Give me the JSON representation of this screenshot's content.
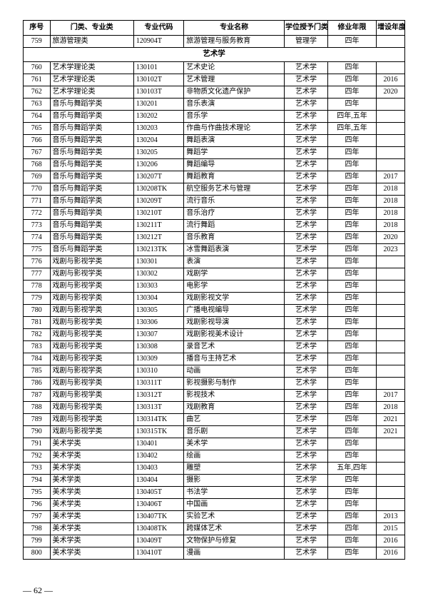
{
  "headers": [
    "序号",
    "门类、专业类",
    "专业代码",
    "专业名称",
    "学位授予门类",
    "修业年限",
    "增设年度"
  ],
  "top_row": [
    "759",
    "旅游管理类",
    "120904T",
    "旅游管理与服务教育",
    "管理学",
    "四年",
    ""
  ],
  "section_title": "艺术学",
  "rows": [
    [
      "760",
      "艺术学理论类",
      "130101",
      "艺术史论",
      "艺术学",
      "四年",
      ""
    ],
    [
      "761",
      "艺术学理论类",
      "130102T",
      "艺术管理",
      "艺术学",
      "四年",
      "2016"
    ],
    [
      "762",
      "艺术学理论类",
      "130103T",
      "非物质文化遗产保护",
      "艺术学",
      "四年",
      "2020"
    ],
    [
      "763",
      "音乐与舞蹈学类",
      "130201",
      "音乐表演",
      "艺术学",
      "四年",
      ""
    ],
    [
      "764",
      "音乐与舞蹈学类",
      "130202",
      "音乐学",
      "艺术学",
      "四年,五年",
      ""
    ],
    [
      "765",
      "音乐与舞蹈学类",
      "130203",
      "作曲与作曲技术理论",
      "艺术学",
      "四年,五年",
      ""
    ],
    [
      "766",
      "音乐与舞蹈学类",
      "130204",
      "舞蹈表演",
      "艺术学",
      "四年",
      ""
    ],
    [
      "767",
      "音乐与舞蹈学类",
      "130205",
      "舞蹈学",
      "艺术学",
      "四年",
      ""
    ],
    [
      "768",
      "音乐与舞蹈学类",
      "130206",
      "舞蹈编导",
      "艺术学",
      "四年",
      ""
    ],
    [
      "769",
      "音乐与舞蹈学类",
      "130207T",
      "舞蹈教育",
      "艺术学",
      "四年",
      "2017"
    ],
    [
      "770",
      "音乐与舞蹈学类",
      "130208TK",
      "航空服务艺术与管理",
      "艺术学",
      "四年",
      "2018"
    ],
    [
      "771",
      "音乐与舞蹈学类",
      "130209T",
      "流行音乐",
      "艺术学",
      "四年",
      "2018"
    ],
    [
      "772",
      "音乐与舞蹈学类",
      "130210T",
      "音乐治疗",
      "艺术学",
      "四年",
      "2018"
    ],
    [
      "773",
      "音乐与舞蹈学类",
      "130211T",
      "流行舞蹈",
      "艺术学",
      "四年",
      "2018"
    ],
    [
      "774",
      "音乐与舞蹈学类",
      "130212T",
      "音乐教育",
      "艺术学",
      "四年",
      "2020"
    ],
    [
      "775",
      "音乐与舞蹈学类",
      "130213TK",
      "冰雪舞蹈表演",
      "艺术学",
      "四年",
      "2023"
    ],
    [
      "776",
      "戏剧与影视学类",
      "130301",
      "表演",
      "艺术学",
      "四年",
      ""
    ],
    [
      "777",
      "戏剧与影视学类",
      "130302",
      "戏剧学",
      "艺术学",
      "四年",
      ""
    ],
    [
      "778",
      "戏剧与影视学类",
      "130303",
      "电影学",
      "艺术学",
      "四年",
      ""
    ],
    [
      "779",
      "戏剧与影视学类",
      "130304",
      "戏剧影视文学",
      "艺术学",
      "四年",
      ""
    ],
    [
      "780",
      "戏剧与影视学类",
      "130305",
      "广播电视编导",
      "艺术学",
      "四年",
      ""
    ],
    [
      "781",
      "戏剧与影视学类",
      "130306",
      "戏剧影视导演",
      "艺术学",
      "四年",
      ""
    ],
    [
      "782",
      "戏剧与影视学类",
      "130307",
      "戏剧影视美术设计",
      "艺术学",
      "四年",
      ""
    ],
    [
      "783",
      "戏剧与影视学类",
      "130308",
      "录音艺术",
      "艺术学",
      "四年",
      ""
    ],
    [
      "784",
      "戏剧与影视学类",
      "130309",
      "播音与主持艺术",
      "艺术学",
      "四年",
      ""
    ],
    [
      "785",
      "戏剧与影视学类",
      "130310",
      "动画",
      "艺术学",
      "四年",
      ""
    ],
    [
      "786",
      "戏剧与影视学类",
      "130311T",
      "影视摄影与制作",
      "艺术学",
      "四年",
      ""
    ],
    [
      "787",
      "戏剧与影视学类",
      "130312T",
      "影视技术",
      "艺术学",
      "四年",
      "2017"
    ],
    [
      "788",
      "戏剧与影视学类",
      "130313T",
      "戏剧教育",
      "艺术学",
      "四年",
      "2018"
    ],
    [
      "789",
      "戏剧与影视学类",
      "130314TK",
      "曲艺",
      "艺术学",
      "四年",
      "2021"
    ],
    [
      "790",
      "戏剧与影视学类",
      "130315TK",
      "音乐剧",
      "艺术学",
      "四年",
      "2021"
    ],
    [
      "791",
      "美术学类",
      "130401",
      "美术学",
      "艺术学",
      "四年",
      ""
    ],
    [
      "792",
      "美术学类",
      "130402",
      "绘画",
      "艺术学",
      "四年",
      ""
    ],
    [
      "793",
      "美术学类",
      "130403",
      "雕塑",
      "艺术学",
      "五年,四年",
      ""
    ],
    [
      "794",
      "美术学类",
      "130404",
      "摄影",
      "艺术学",
      "四年",
      ""
    ],
    [
      "795",
      "美术学类",
      "130405T",
      "书法学",
      "艺术学",
      "四年",
      ""
    ],
    [
      "796",
      "美术学类",
      "130406T",
      "中国画",
      "艺术学",
      "四年",
      ""
    ],
    [
      "797",
      "美术学类",
      "130407TK",
      "实验艺术",
      "艺术学",
      "四年",
      "2013"
    ],
    [
      "798",
      "美术学类",
      "130408TK",
      "跨媒体艺术",
      "艺术学",
      "四年",
      "2015"
    ],
    [
      "799",
      "美术学类",
      "130409T",
      "文物保护与修复",
      "艺术学",
      "四年",
      "2016"
    ],
    [
      "800",
      "美术学类",
      "130410T",
      "漫画",
      "艺术学",
      "四年",
      "2016"
    ]
  ],
  "page_number": "— 62 —"
}
